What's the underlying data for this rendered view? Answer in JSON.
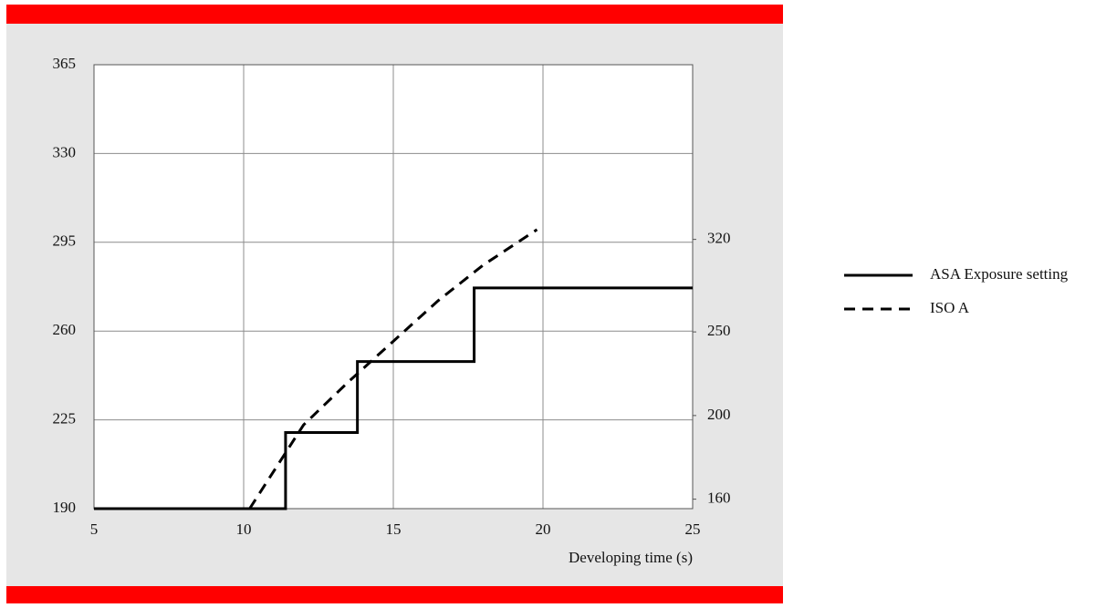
{
  "chart_data": {
    "type": "line",
    "x_label": "Developing time (s)",
    "xlim": [
      5,
      25
    ],
    "xticks": [
      5,
      10,
      15,
      20,
      25
    ],
    "ylim": [
      190,
      365
    ],
    "yticks": [
      190,
      225,
      260,
      295,
      330,
      365
    ],
    "y2lim": [
      156,
      510
    ],
    "y2ticks": [
      160,
      200,
      250,
      320
    ],
    "y2scale": "log",
    "grid": true,
    "legend": "right",
    "series": [
      {
        "name": "ASA Exposure setting",
        "color": "#000000",
        "dash": "solid",
        "x": [
          5,
          11.4,
          11.4,
          13.8,
          13.8,
          17.7,
          17.7,
          25
        ],
        "values": [
          190,
          190,
          220,
          220,
          248,
          248,
          277,
          277
        ]
      },
      {
        "name": "ISO A",
        "color": "#000000",
        "dash": "dashed",
        "x": [
          10.2,
          12,
          13.5,
          15,
          16.5,
          18,
          19.8
        ],
        "values": [
          190,
          223,
          240,
          256,
          272,
          286,
          300
        ]
      }
    ]
  }
}
